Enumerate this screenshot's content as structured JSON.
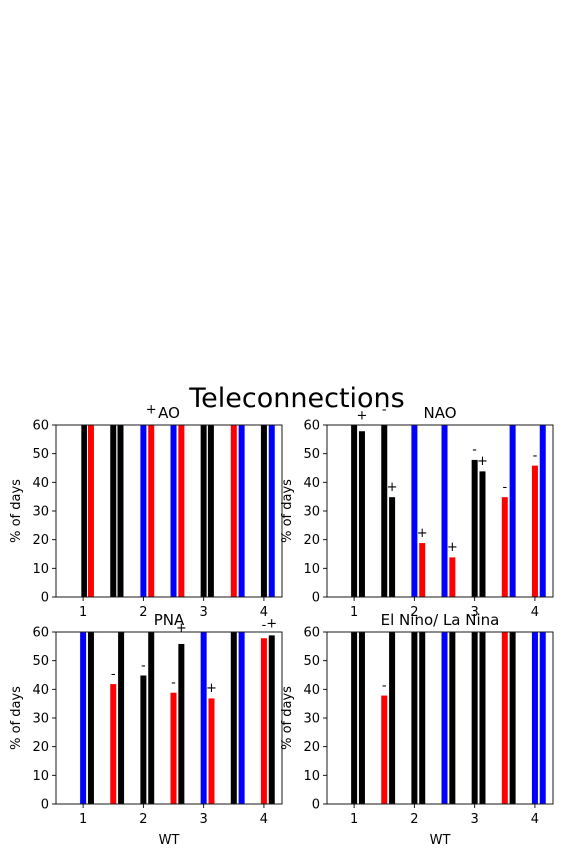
{
  "figure": {
    "title": "Teleconnections"
  },
  "colors": {
    "positive": "#ff0000",
    "negative": "#0000ff",
    "neutral": "#000000"
  },
  "chart_data": [
    {
      "type": "bar",
      "title": "AO",
      "ylabel": "% of days",
      "xlabel": "",
      "ylim": [
        0,
        60
      ],
      "xlim": [
        0.55,
        4.3
      ],
      "yticks": [
        0,
        10,
        20,
        30,
        40,
        50,
        60
      ],
      "xticks": [
        1,
        2,
        3,
        4
      ],
      "bars": [
        {
          "x": 1.02,
          "value": 60,
          "color": "black"
        },
        {
          "x": 1.13,
          "value": 60,
          "color": "red"
        },
        {
          "x": 1.5,
          "value": 60,
          "color": "black"
        },
        {
          "x": 1.62,
          "value": 60,
          "color": "black"
        },
        {
          "x": 2.0,
          "value": 60,
          "color": "blue"
        },
        {
          "x": 2.13,
          "value": 60,
          "color": "red"
        },
        {
          "x": 2.5,
          "value": 60,
          "color": "blue"
        },
        {
          "x": 2.63,
          "value": 60,
          "color": "red"
        },
        {
          "x": 3.0,
          "value": 60,
          "color": "black"
        },
        {
          "x": 3.12,
          "value": 60,
          "color": "black"
        },
        {
          "x": 3.5,
          "value": 60,
          "color": "red"
        },
        {
          "x": 3.63,
          "value": 60,
          "color": "blue"
        },
        {
          "x": 4.0,
          "value": 60,
          "color": "black"
        },
        {
          "x": 4.13,
          "value": 60,
          "color": "blue"
        }
      ],
      "annotations": [
        {
          "x": 2.13,
          "y": 64,
          "text": "+"
        }
      ]
    },
    {
      "type": "bar",
      "title": "NAO",
      "ylabel": "% of days",
      "xlabel": "",
      "ylim": [
        0,
        60
      ],
      "xlim": [
        0.55,
        4.3
      ],
      "yticks": [
        0,
        10,
        20,
        30,
        40,
        50,
        60
      ],
      "xticks": [
        1,
        2,
        3,
        4
      ],
      "bars": [
        {
          "x": 1.0,
          "value": 60,
          "color": "black"
        },
        {
          "x": 1.13,
          "value": 58,
          "color": "black"
        },
        {
          "x": 1.5,
          "value": 60,
          "color": "black"
        },
        {
          "x": 1.63,
          "value": 35,
          "color": "black"
        },
        {
          "x": 2.0,
          "value": 60,
          "color": "blue"
        },
        {
          "x": 2.13,
          "value": 19,
          "color": "red"
        },
        {
          "x": 2.5,
          "value": 60,
          "color": "blue"
        },
        {
          "x": 2.63,
          "value": 14,
          "color": "red"
        },
        {
          "x": 3.0,
          "value": 48,
          "color": "black"
        },
        {
          "x": 3.13,
          "value": 44,
          "color": "black"
        },
        {
          "x": 3.5,
          "value": 35,
          "color": "red"
        },
        {
          "x": 3.63,
          "value": 60,
          "color": "blue"
        },
        {
          "x": 4.0,
          "value": 46,
          "color": "red"
        },
        {
          "x": 4.13,
          "value": 60,
          "color": "blue"
        }
      ],
      "annotations": [
        {
          "x": 1.13,
          "y": 62,
          "text": "+"
        },
        {
          "x": 1.5,
          "y": 64,
          "text": "-"
        },
        {
          "x": 1.63,
          "y": 37,
          "text": "+"
        },
        {
          "x": 2.13,
          "y": 21,
          "text": "+"
        },
        {
          "x": 2.63,
          "y": 16,
          "text": "+"
        },
        {
          "x": 3.0,
          "y": 50,
          "text": "-"
        },
        {
          "x": 3.13,
          "y": 46,
          "text": "+"
        },
        {
          "x": 3.5,
          "y": 37,
          "text": "-"
        },
        {
          "x": 4.0,
          "y": 48,
          "text": "-"
        }
      ]
    },
    {
      "type": "bar",
      "title": "PNA",
      "ylabel": "% of days",
      "xlabel": "WT",
      "ylim": [
        0,
        60
      ],
      "xlim": [
        0.55,
        4.3
      ],
      "yticks": [
        0,
        10,
        20,
        30,
        40,
        50,
        60
      ],
      "xticks": [
        1,
        2,
        3,
        4
      ],
      "bars": [
        {
          "x": 1.0,
          "value": 60,
          "color": "blue"
        },
        {
          "x": 1.13,
          "value": 60,
          "color": "black"
        },
        {
          "x": 1.5,
          "value": 42,
          "color": "red"
        },
        {
          "x": 1.63,
          "value": 60,
          "color": "black"
        },
        {
          "x": 2.0,
          "value": 45,
          "color": "black"
        },
        {
          "x": 2.13,
          "value": 60,
          "color": "black"
        },
        {
          "x": 2.5,
          "value": 39,
          "color": "red"
        },
        {
          "x": 2.63,
          "value": 56,
          "color": "black"
        },
        {
          "x": 3.0,
          "value": 60,
          "color": "blue"
        },
        {
          "x": 3.13,
          "value": 37,
          "color": "red"
        },
        {
          "x": 3.5,
          "value": 60,
          "color": "black"
        },
        {
          "x": 3.63,
          "value": 60,
          "color": "blue"
        },
        {
          "x": 4.0,
          "value": 58,
          "color": "red"
        },
        {
          "x": 4.13,
          "value": 59,
          "color": "black"
        }
      ],
      "annotations": [
        {
          "x": 1.5,
          "y": 44,
          "text": "-"
        },
        {
          "x": 2.0,
          "y": 47,
          "text": "-"
        },
        {
          "x": 2.5,
          "y": 41,
          "text": "-"
        },
        {
          "x": 2.63,
          "y": 60,
          "text": "+"
        },
        {
          "x": 3.13,
          "y": 39,
          "text": "+"
        },
        {
          "x": 4.0,
          "y": 61,
          "text": "-"
        },
        {
          "x": 4.13,
          "y": 61.5,
          "text": "+"
        }
      ]
    },
    {
      "type": "bar",
      "title": "El Nino/ La Nina",
      "ylabel": "% of days",
      "xlabel": "WT",
      "ylim": [
        0,
        60
      ],
      "xlim": [
        0.55,
        4.3
      ],
      "yticks": [
        0,
        10,
        20,
        30,
        40,
        50,
        60
      ],
      "xticks": [
        1,
        2,
        3,
        4
      ],
      "bars": [
        {
          "x": 1.0,
          "value": 60,
          "color": "black"
        },
        {
          "x": 1.13,
          "value": 60,
          "color": "black"
        },
        {
          "x": 1.5,
          "value": 38,
          "color": "red"
        },
        {
          "x": 1.63,
          "value": 60,
          "color": "black"
        },
        {
          "x": 2.0,
          "value": 60,
          "color": "black"
        },
        {
          "x": 2.13,
          "value": 60,
          "color": "black"
        },
        {
          "x": 2.5,
          "value": 60,
          "color": "blue"
        },
        {
          "x": 2.63,
          "value": 60,
          "color": "black"
        },
        {
          "x": 3.0,
          "value": 60,
          "color": "black"
        },
        {
          "x": 3.13,
          "value": 60,
          "color": "black"
        },
        {
          "x": 3.5,
          "value": 60,
          "color": "red"
        },
        {
          "x": 3.63,
          "value": 60,
          "color": "black"
        },
        {
          "x": 4.0,
          "value": 60,
          "color": "blue"
        },
        {
          "x": 4.13,
          "value": 60,
          "color": "blue"
        }
      ],
      "annotations": [
        {
          "x": 1.5,
          "y": 40,
          "text": "-"
        }
      ]
    }
  ]
}
